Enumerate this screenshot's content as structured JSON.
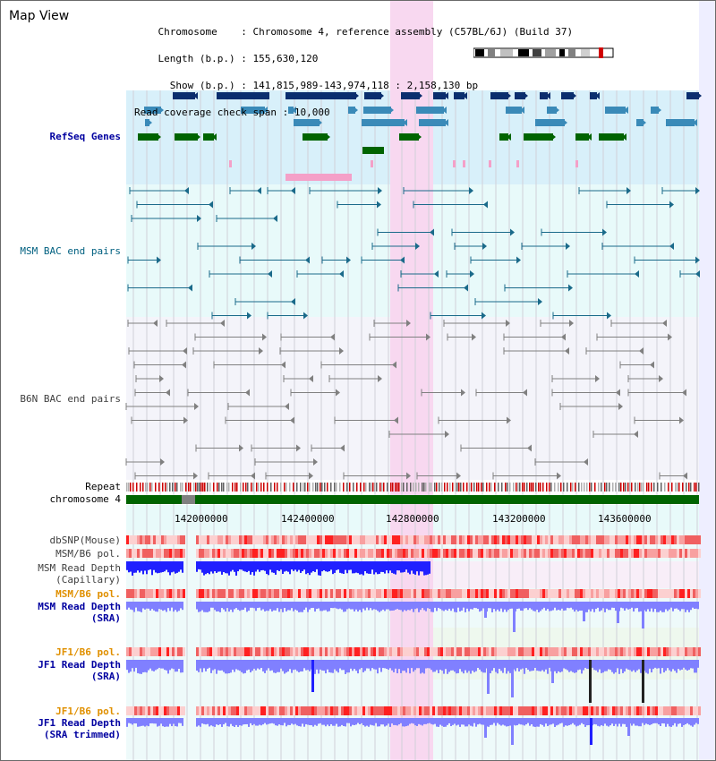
{
  "title": "Map View",
  "info": {
    "chromosome_label": "Chromosome",
    "chromosome_value": "Chromosome 4, reference assembly (C57BL/6J) (Build 37)",
    "length_label": "Length (b.p.)",
    "length_value": "155,630,120",
    "show_label": "Show (b.p.)",
    "show_value": "141,815,989-143,974,118 : 2,158,130 bp",
    "span_label": "Read coverage check span",
    "span_value": "10,000"
  },
  "tracks": {
    "refseq": "RefSeq Genes",
    "msm_bac": "MSM BAC end pairs",
    "b6n_bac": "B6N BAC end pairs",
    "repeat": "Repeat",
    "chromosome": "chromosome 4",
    "dbsnp": "dbSNP(Mouse)",
    "msm_b6_pol_1": "MSM/B6 pol.",
    "msm_read_depth_cap_1": "MSM Read Depth",
    "msm_read_depth_cap_2": "(Capillary)",
    "msm_b6_pol_2": "MSM/B6 pol.",
    "msm_read_depth_sra_1": "MSM Read Depth",
    "msm_read_depth_sra_2": "(SRA)",
    "jf1_b6_pol_1": "JF1/B6 pol.",
    "jf1_read_depth_sra_1": "JF1 Read Depth",
    "jf1_read_depth_sra_2": "(SRA)",
    "jf1_b6_pol_2": "JF1/B6 pol.",
    "jf1_read_depth_trim_1": "JF1 Read Depth",
    "jf1_read_depth_trim_2": "(SRA trimmed)"
  },
  "axis_ticks": [
    "142000000",
    "142400000",
    "142800000",
    "143200000",
    "143600000"
  ],
  "colors": {
    "highlight": "#f8d8f0",
    "refseq_bg": "#d8f0fa",
    "bac_bg": "#e8fafa",
    "gene_dark": "#0a2e6e",
    "gene_mid": "#3a8ab8",
    "gene_green": "#006400",
    "gene_pink": "#f4a0c8",
    "repeat_red": "#cc0000",
    "chrom_green": "#006400",
    "depth_blue": "#2020ff",
    "depth_light": "#8080ff",
    "pol_red": "#e03030"
  }
}
